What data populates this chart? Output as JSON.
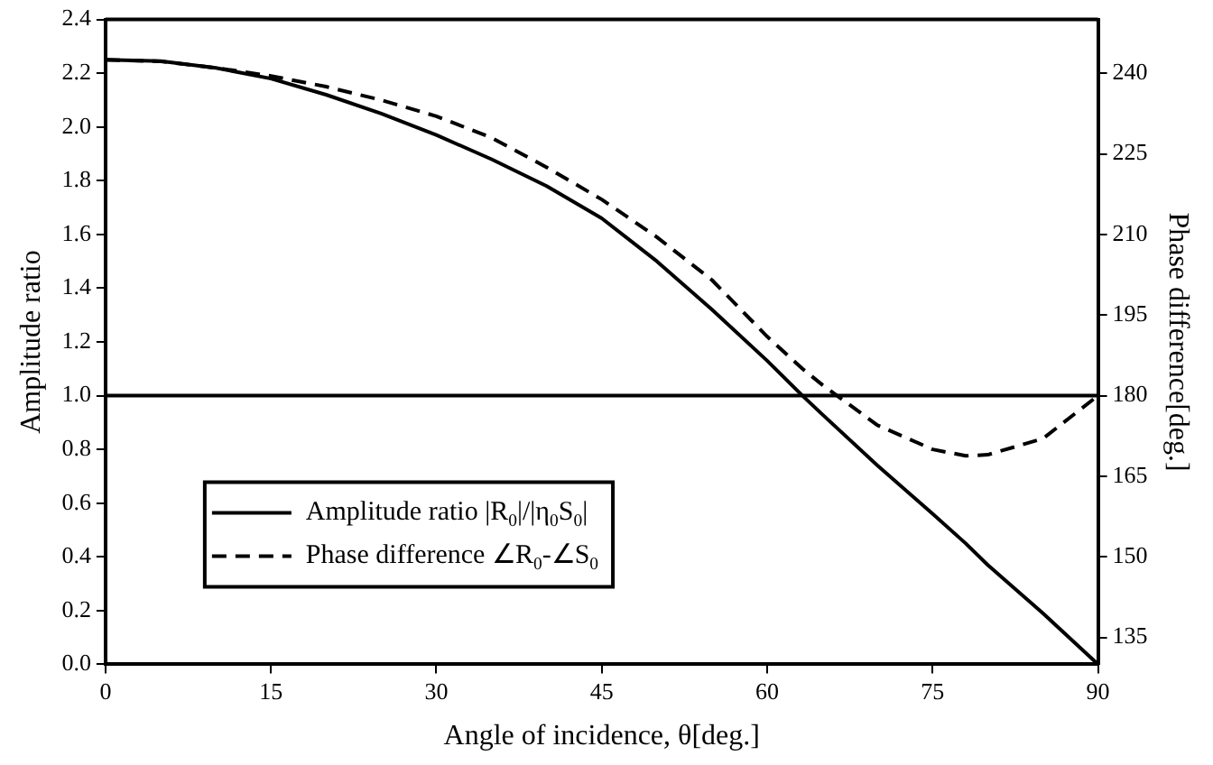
{
  "chart_data": {
    "type": "line",
    "xlabel": "Angle of incidence, θ[deg.]",
    "ylabel": "Amplitude ratio",
    "y2label": "Phase difference[deg.]",
    "x": [
      0,
      5,
      10,
      15,
      20,
      25,
      30,
      35,
      40,
      45,
      50,
      55,
      60,
      63.2,
      65,
      70,
      75,
      78,
      80,
      85,
      90
    ],
    "series": [
      {
        "name": "Amplitude ratio |R$_{0}$|/|η$_{0}$S$_{0}$|",
        "color": "#000000",
        "line_style": "solid",
        "values": [
          2.25,
          2.245,
          2.22,
          2.18,
          2.12,
          2.05,
          1.97,
          1.88,
          1.78,
          1.66,
          1.5,
          1.32,
          1.13,
          1.0,
          0.93,
          0.74,
          0.56,
          0.45,
          0.37,
          0.19,
          0
        ]
      },
      {
        "name": "Phase difference ∠R$_{0}$-∠S$_{0}$",
        "color": "#000000",
        "line_style": "dashed",
        "axis": "y2",
        "values": [
          242.5,
          242.2,
          241,
          239.5,
          237.5,
          235,
          232,
          228,
          222.5,
          216.5,
          209.5,
          201.5,
          191,
          185,
          182,
          174.5,
          170,
          168.8,
          169,
          172,
          180
        ]
      }
    ],
    "xlim": [
      0,
      90
    ],
    "xticks": [
      0,
      15,
      30,
      45,
      60,
      75,
      90
    ],
    "ylim": [
      0,
      2.4
    ],
    "yticks": [
      {
        "value": 0,
        "label": "0.0"
      },
      0.2,
      0.4,
      0.6,
      0.8,
      {
        "value": 1,
        "label": "1.0"
      },
      1.2,
      1.4,
      1.6,
      1.8,
      {
        "value": 2,
        "label": "2.0"
      },
      2.2,
      2.4
    ],
    "y2lim": [
      130,
      250
    ],
    "y2ticks": [
      135,
      150,
      165,
      180,
      195,
      210,
      225,
      240
    ],
    "ref_lines": [
      {
        "axis": "y",
        "value": 1,
        "color": "#000000"
      }
    ],
    "grid": false,
    "legend": "bottom left",
    "marker": "none"
  }
}
